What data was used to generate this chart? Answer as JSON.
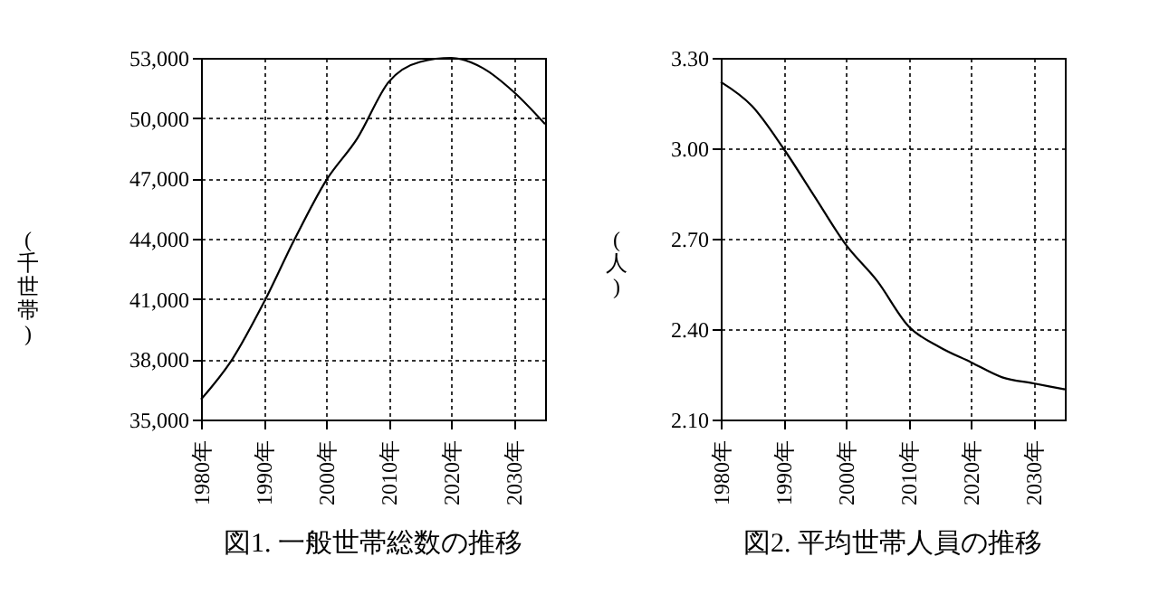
{
  "chart_data": [
    {
      "type": "line",
      "title": "図1. 一般世帯総数の推移",
      "ylabel": "(千世帯)",
      "x": [
        1980,
        1985,
        1990,
        1995,
        2000,
        2005,
        2010,
        2015,
        2020,
        2025,
        2030,
        2035
      ],
      "series": [
        {
          "color": "#000000",
          "values": [
            36000,
            38000,
            40800,
            44000,
            46900,
            49000,
            51800,
            52800,
            53000,
            52500,
            51300,
            49700
          ]
        }
      ],
      "xlim": [
        1980,
        2035
      ],
      "xticks": [
        {
          "value": 1980,
          "label": "1980年"
        },
        {
          "value": 1990,
          "label": "1990年"
        },
        {
          "value": 2000,
          "label": "2000年"
        },
        {
          "value": 2010,
          "label": "2010年"
        },
        {
          "value": 2020,
          "label": "2020年"
        },
        {
          "value": 2030,
          "label": "2030年"
        }
      ],
      "ylim": [
        35000,
        53000
      ],
      "yticks": [
        {
          "value": 35000,
          "label": "35,000"
        },
        {
          "value": 38000,
          "label": "38,000"
        },
        {
          "value": 41000,
          "label": "41,000"
        },
        {
          "value": 44000,
          "label": "44,000"
        },
        {
          "value": 47000,
          "label": "47,000"
        },
        {
          "value": 50000,
          "label": "50,000"
        },
        {
          "value": 53000,
          "label": "53,000"
        }
      ],
      "grid": true,
      "marker": "none",
      "line_style": "solid"
    },
    {
      "type": "line",
      "title": "図2. 平均世帯人員の推移",
      "ylabel": "(人)",
      "x": [
        1980,
        1985,
        1990,
        1995,
        2000,
        2005,
        2010,
        2015,
        2020,
        2025,
        2030,
        2035
      ],
      "series": [
        {
          "color": "#000000",
          "values": [
            3.22,
            3.14,
            3.0,
            2.84,
            2.68,
            2.56,
            2.41,
            2.34,
            2.29,
            2.24,
            2.22,
            2.2
          ]
        }
      ],
      "xlim": [
        1980,
        2035
      ],
      "xticks": [
        {
          "value": 1980,
          "label": "1980年"
        },
        {
          "value": 1990,
          "label": "1990年"
        },
        {
          "value": 2000,
          "label": "2000年"
        },
        {
          "value": 2010,
          "label": "2010年"
        },
        {
          "value": 2020,
          "label": "2020年"
        },
        {
          "value": 2030,
          "label": "2030年"
        }
      ],
      "ylim": [
        2.1,
        3.3
      ],
      "yticks": [
        {
          "value": 2.1,
          "label": "2.10"
        },
        {
          "value": 2.4,
          "label": "2.40"
        },
        {
          "value": 2.7,
          "label": "2.70"
        },
        {
          "value": 3.0,
          "label": "3.00"
        },
        {
          "value": 3.3,
          "label": "3.30"
        }
      ],
      "grid": true,
      "marker": "none",
      "line_style": "solid"
    }
  ]
}
